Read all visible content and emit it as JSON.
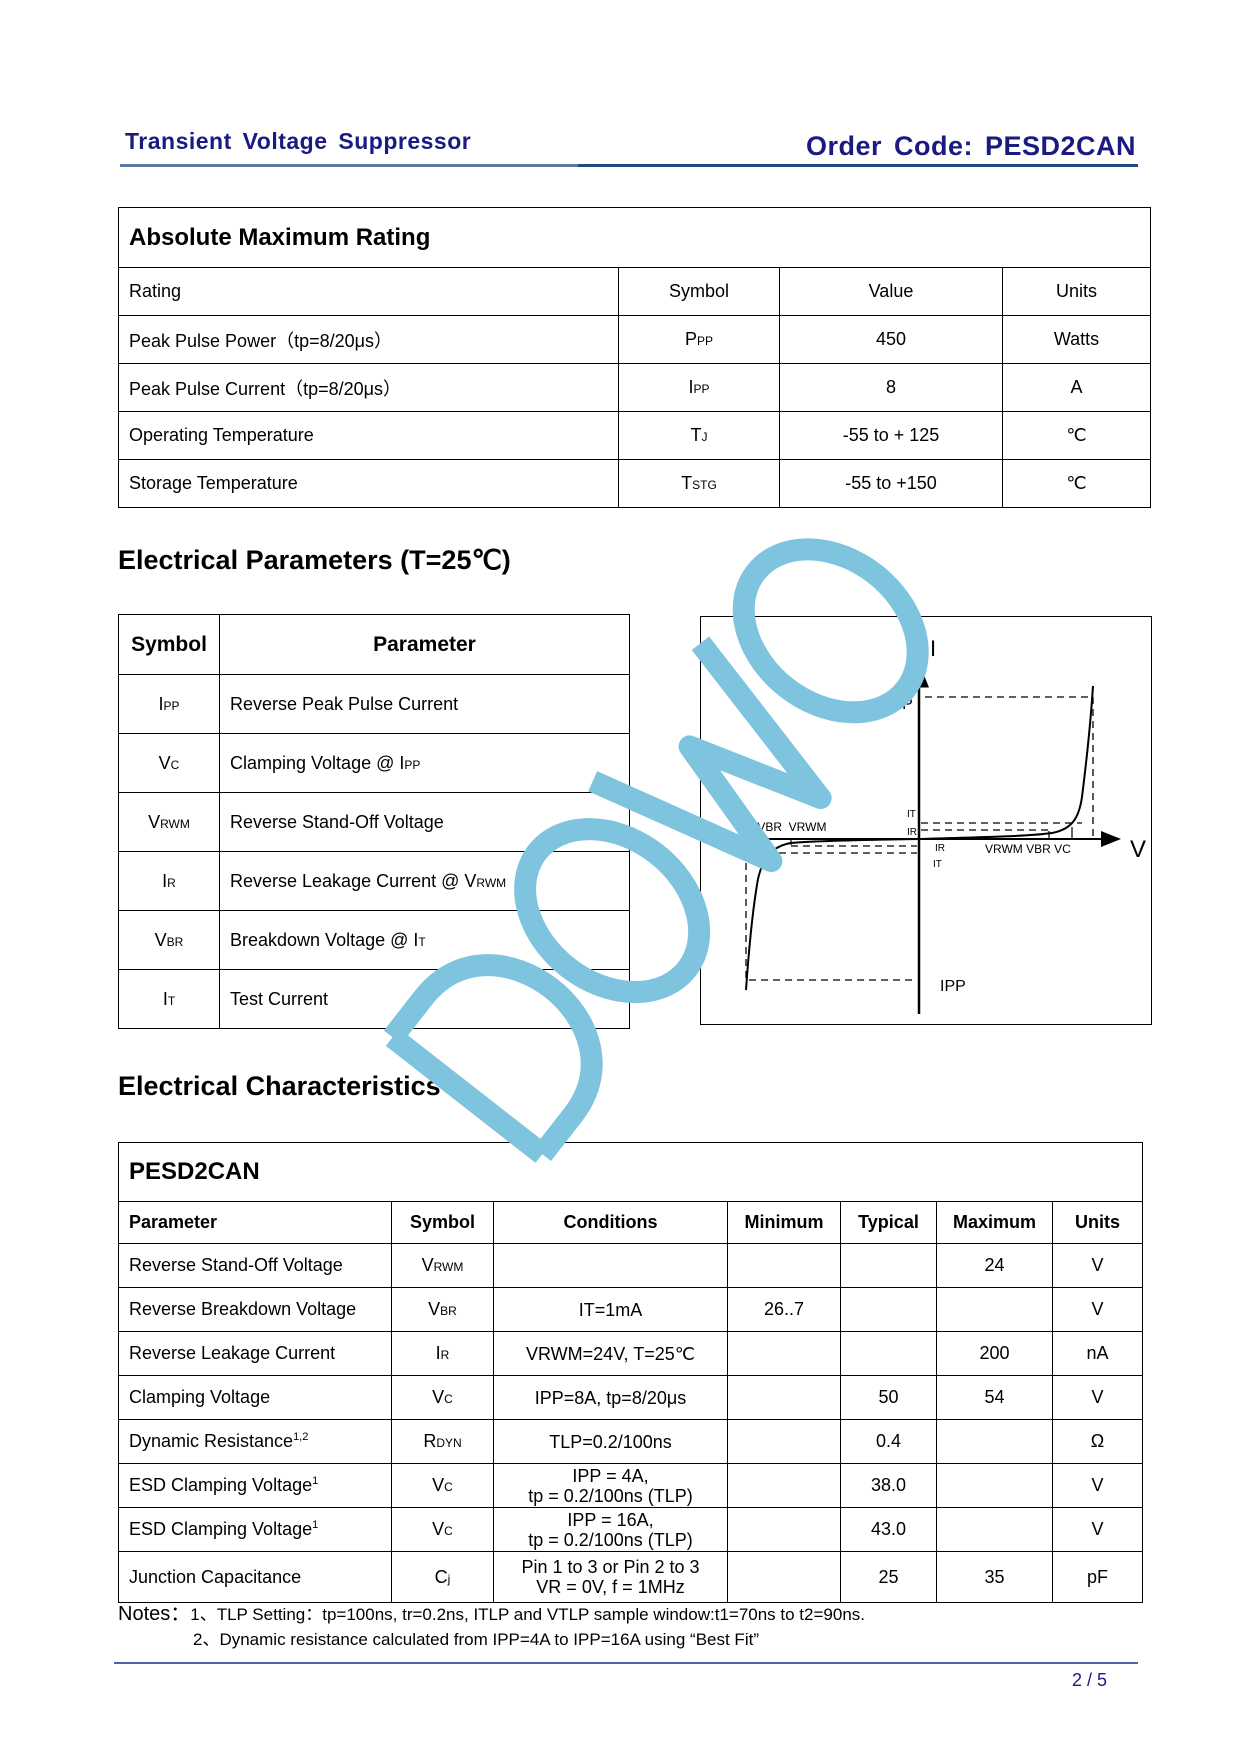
{
  "header": {
    "left": "Transient Voltage Suppressor",
    "right": "Order Code: PESD2CAN"
  },
  "amr": {
    "title": "Absolute Maximum Rating",
    "columns": [
      "Rating",
      "Symbol",
      "Value",
      "Units"
    ],
    "rows": [
      {
        "rating": "Peak Pulse Power（tp=8/20μs）",
        "sym": "P",
        "sub": "PP",
        "value": "450",
        "units": "Watts"
      },
      {
        "rating": "Peak Pulse Current（tp=8/20μs）",
        "sym": "I",
        "sub": "PP",
        "value": "8",
        "units": "A"
      },
      {
        "rating": "Operating Temperature",
        "sym": "T",
        "sub": "J",
        "value": "-55 to + 125",
        "units": "℃"
      },
      {
        "rating": "Storage Temperature",
        "sym": "T",
        "sub": "STG",
        "value": "-55 to +150",
        "units": "℃"
      }
    ]
  },
  "ep": {
    "title": "Electrical Parameters (T=25℃)",
    "columns": [
      "Symbol",
      "Parameter"
    ],
    "rows": [
      {
        "sym": "I",
        "sub": "PP",
        "param": "Reverse Peak Pulse Current",
        "psub": ""
      },
      {
        "sym": "V",
        "sub": "C",
        "param": "Clamping Voltage @ I",
        "psub": "PP"
      },
      {
        "sym": "V",
        "sub": "RWM",
        "param": "Reverse Stand-Off Voltage",
        "psub": ""
      },
      {
        "sym": "I",
        "sub": "R",
        "param": "Reverse Leakage Current @ V",
        "psub": "RWM"
      },
      {
        "sym": "V",
        "sub": "BR",
        "param": "Breakdown Voltage @ I",
        "psub": "T"
      },
      {
        "sym": "I",
        "sub": "T",
        "param": "Test Current",
        "psub": ""
      }
    ]
  },
  "diagram": {
    "axis_i": "I",
    "axis_v": "V",
    "ipp_top": "IPP",
    "ipp_bottom": "IPP",
    "it_top": "IT",
    "ir_top": "IR",
    "ir_bottom": "IR",
    "it_bottom": "IT",
    "left_labels": "VC  VBR  VRWM",
    "right_labels": "VRWM VBR VC"
  },
  "ec": {
    "title": "Electrical Characteristics",
    "device": "PESD2CAN",
    "columns": [
      "Parameter",
      "Symbol",
      "Conditions",
      "Minimum",
      "Typical",
      "Maximum",
      "Units"
    ],
    "rows": [
      {
        "param": "Reverse Stand-Off Voltage",
        "sup": "",
        "sym": "V",
        "sub": "RWM",
        "cond": "",
        "min": "",
        "typ": "",
        "max": "24",
        "units": "V"
      },
      {
        "param": "Reverse Breakdown Voltage",
        "sup": "",
        "sym": "V",
        "sub": "BR",
        "cond": "IT=1mA",
        "min": "26..7",
        "typ": "",
        "max": "",
        "units": "V"
      },
      {
        "param": "Reverse Leakage Current",
        "sup": "",
        "sym": "I",
        "sub": "R",
        "cond": "VRWM=24V, T=25℃",
        "min": "",
        "typ": "",
        "max": "200",
        "units": "nA"
      },
      {
        "param": "Clamping Voltage",
        "sup": "",
        "sym": "V",
        "sub": "C",
        "cond": "IPP=8A, tp=8/20μs",
        "min": "",
        "typ": "50",
        "max": "54",
        "units": "V"
      },
      {
        "param": "Dynamic Resistance",
        "sup": "1,2",
        "sym": "R",
        "sub": "DYN",
        "cond": "TLP=0.2/100ns",
        "min": "",
        "typ": "0.4",
        "max": "",
        "units": "Ω"
      },
      {
        "param": "ESD Clamping Voltage",
        "sup": "1",
        "sym": "V",
        "sub": "C",
        "cond": "IPP = 4A,\ntp = 0.2/100ns (TLP)",
        "min": "",
        "typ": "38.0",
        "max": "",
        "units": "V"
      },
      {
        "param": "ESD Clamping Voltage",
        "sup": "1",
        "sym": "V",
        "sub": "C",
        "cond": "IPP = 16A,\ntp = 0.2/100ns (TLP)",
        "min": "",
        "typ": "43.0",
        "max": "",
        "units": "V"
      },
      {
        "param": "Junction Capacitance",
        "sup": "",
        "sym": "C",
        "sub": "j",
        "cond": "Pin 1 to 3 or Pin 2 to 3\nVR = 0V, f = 1MHz",
        "min": "",
        "typ": "25",
        "max": "35",
        "units": "pF"
      }
    ]
  },
  "notes": {
    "label": "Notes：",
    "line1": "1、TLP Setting：tp=100ns, tr=0.2ns, ITLP and VTLP sample window:t1=70ns to t2=90ns.",
    "line2": "2、Dynamic resistance calculated from IPP=4A to IPP=16A using “Best Fit”"
  },
  "footer": {
    "page": "2 / 5"
  },
  "watermark": {
    "text": "DOWO",
    "color": "#7fc4df"
  },
  "colors": {
    "header": "#1a1a80",
    "rule": "#234a80"
  }
}
